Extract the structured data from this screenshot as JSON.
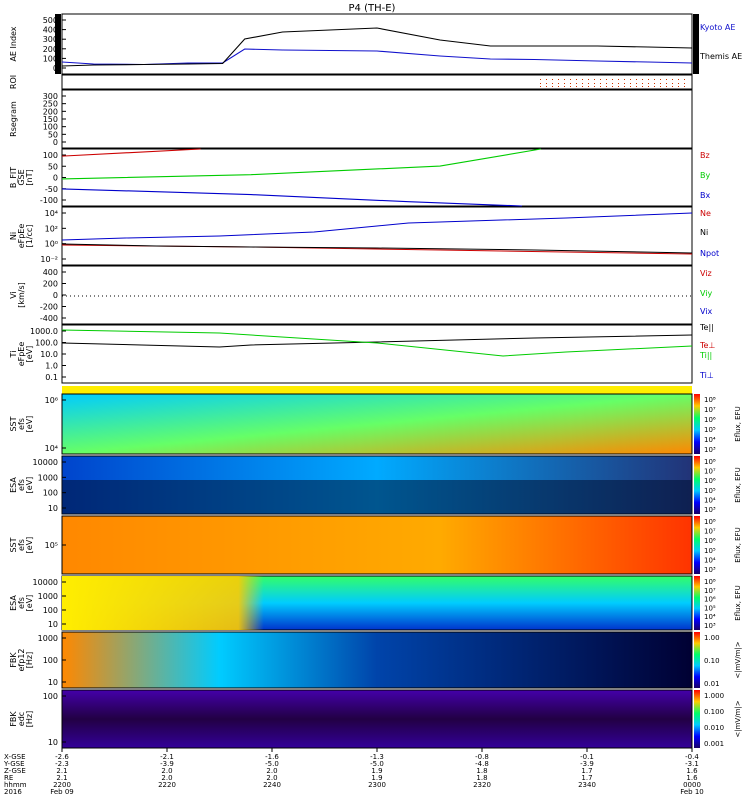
{
  "title": "P4 (TH-E)",
  "chart_data": [
    {
      "type": "line",
      "ylabel": "AE Index",
      "ylim": [
        -50,
        550
      ],
      "yticks": [
        "500",
        "400",
        "300",
        "200",
        "100",
        "0"
      ],
      "x": [
        "2200",
        "2210",
        "2220",
        "2230",
        "2236",
        "2240",
        "2250",
        "2300",
        "2310",
        "2320",
        "2330",
        "2340",
        "2350",
        "2400"
      ],
      "series": [
        {
          "name": "Kyoto AE",
          "color": "#1010cc",
          "values": [
            70,
            50,
            45,
            60,
            60,
            200,
            190,
            180,
            130,
            100,
            95,
            80,
            70,
            60
          ]
        },
        {
          "name": "Themis AE",
          "color": "#000000",
          "values": [
            30,
            40,
            45,
            50,
            55,
            300,
            370,
            410,
            290,
            230,
            230,
            230,
            220,
            210
          ]
        }
      ]
    },
    {
      "type": "table",
      "ylabel": "ROI"
    },
    {
      "type": "line",
      "ylabel": "Rsegram",
      "ylim": [
        0,
        300
      ],
      "yticks": [
        "300",
        "250",
        "200",
        "150",
        "100",
        "50",
        "0"
      ]
    },
    {
      "type": "line",
      "ylabel": "B_FIT",
      "ylabel2": "GSE",
      "ylabel3": "[nT]",
      "ylim": [
        -100,
        100
      ],
      "yticks": [
        "100",
        "50",
        "0",
        "-50",
        "-100"
      ],
      "x_frac": [
        0,
        0.5,
        1
      ],
      "series": [
        {
          "name": "Bz",
          "color": "#cc0000",
          "values": [
            75,
            100,
            100
          ]
        },
        {
          "name": "By",
          "color": "#00cc00",
          "values": [
            -5,
            40,
            100
          ]
        },
        {
          "name": "Bx",
          "color": "#0000cc",
          "values": [
            -40,
            -90,
            -100
          ]
        }
      ]
    },
    {
      "type": "line",
      "ylabel": "Ni",
      "ylabel2": "eFpEe",
      "ylabel3": "[1/cc]",
      "yticks": [
        "10⁴",
        "10²",
        "10⁰",
        "10⁻²"
      ],
      "series": [
        {
          "name": "Ne",
          "color": "#cc0000"
        },
        {
          "name": "Ni",
          "color": "#000000"
        },
        {
          "name": "Npot",
          "color": "#0000cc"
        }
      ]
    },
    {
      "type": "line",
      "ylabel": "Vi",
      "ylabel3": "[km/s]",
      "ylim": [
        -500,
        500
      ],
      "yticks": [
        "400",
        "200",
        "0",
        "-200",
        "-400"
      ],
      "series": [
        {
          "name": "Viz",
          "color": "#cc0000"
        },
        {
          "name": "Viy",
          "color": "#00cc00"
        },
        {
          "name": "Vix",
          "color": "#0000cc"
        }
      ]
    },
    {
      "type": "line",
      "ylabel": "Ti",
      "ylabel2": "eFpEe",
      "ylabel3": "[eV]",
      "yticks": [
        "1000.0",
        "100.0",
        "10.0",
        "1.0",
        "0.1"
      ],
      "series": [
        {
          "name": "Te||",
          "color": "#000000"
        },
        {
          "name": "Te⊥",
          "color": "#cc0000"
        },
        {
          "name": "Ti||",
          "color": "#00cc00"
        },
        {
          "name": "Ti⊥",
          "color": "#0000cc"
        }
      ]
    },
    {
      "type": "heatmap",
      "ylabel": "SST",
      "ylabel2": "efs",
      "ylabel3": "[eV]",
      "yticks": [
        "10⁶",
        "10⁴"
      ],
      "colorbar": "Eflux, EFU"
    },
    {
      "type": "heatmap",
      "ylabel": "ESA",
      "ylabel2": "efs",
      "ylabel3": "[eV]",
      "yticks": [
        "10000",
        "1000",
        "100",
        "10"
      ],
      "colorbar": "Eflux, EFU"
    },
    {
      "type": "heatmap",
      "ylabel": "SST",
      "ylabel2": "efs",
      "ylabel3": "[eV]",
      "yticks": [
        "10⁵"
      ],
      "colorbar": "Eflux, EFU"
    },
    {
      "type": "heatmap",
      "ylabel": "ESA",
      "ylabel2": "efs",
      "ylabel3": "[eV]",
      "yticks": [
        "10000",
        "1000",
        "100",
        "10"
      ],
      "colorbar": "Eflux, EFU"
    },
    {
      "type": "heatmap",
      "ylabel": "FBK",
      "ylabel2": "efp12",
      "ylabel3": "[Hz]",
      "yticks": [
        "1000",
        "100",
        "10"
      ],
      "colorbar": "<|mV/m|>"
    },
    {
      "type": "heatmap",
      "ylabel": "FBK",
      "ylabel2": "edc",
      "ylabel3": "[Hz]",
      "yticks": [
        "100",
        "10"
      ],
      "colorbar": "<|mV/m|>"
    }
  ],
  "colorbars": {
    "eflux_ticks": [
      "10⁸",
      "10⁷",
      "10⁶",
      "10⁵",
      "10⁴",
      "10³"
    ],
    "fbk1_ticks": [
      "1.00",
      "0.10",
      "0.01"
    ],
    "fbk2_ticks": [
      "1.000",
      "0.100",
      "0.010",
      "0.001"
    ]
  },
  "xaxis": {
    "row_labels": [
      "X-GSE",
      "Y-GSE",
      "Z-GSE",
      "RE",
      "hhmm",
      "2016"
    ],
    "cols": [
      [
        "-2.6",
        "-2.3",
        "2.1",
        "2.1",
        "2200",
        "Feb 09"
      ],
      [
        "-2.1",
        "-3.9",
        "2.0",
        "2.0",
        "2220",
        ""
      ],
      [
        "-1.6",
        "-5.0",
        "2.0",
        "2.0",
        "2240",
        ""
      ],
      [
        "-1.3",
        "-5.0",
        "1.9",
        "1.9",
        "2300",
        ""
      ],
      [
        "-0.8",
        "-4.8",
        "1.8",
        "1.8",
        "2320",
        ""
      ],
      [
        "-0.1",
        "-3.9",
        "1.7",
        "1.7",
        "2340",
        ""
      ],
      [
        "-0.4",
        "-3.1",
        "1.6",
        "1.6",
        "0000",
        "Feb 10"
      ]
    ]
  }
}
